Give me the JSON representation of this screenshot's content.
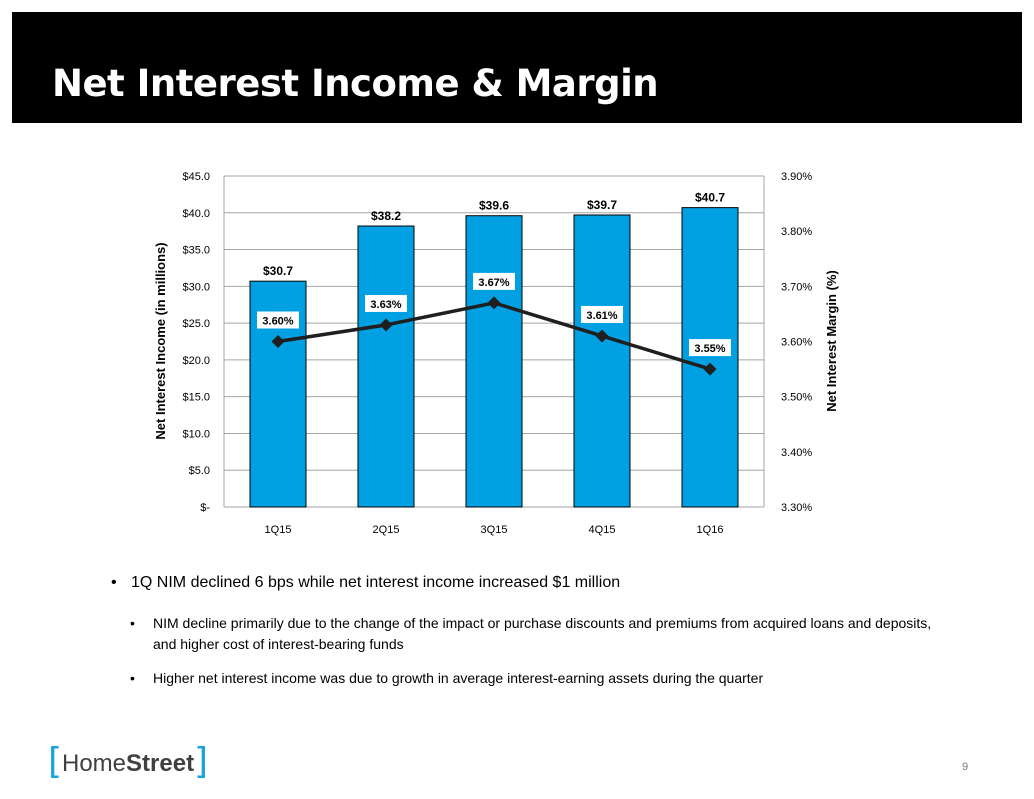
{
  "slide": {
    "title": "Net Interest Income & Margin",
    "page_number": "9"
  },
  "logo": {
    "bracket_left": "[",
    "name_part1": "Home",
    "name_part2": "Street",
    "bracket_right": "]",
    "bracket_color": "#1aa3dd"
  },
  "bullets": {
    "main": {
      "marker": "•",
      "text": "1Q NIM declined 6 bps while net interest income increased $1 million"
    },
    "sub": [
      {
        "marker": "•",
        "text": "NIM decline primarily due to the change of the impact or purchase discounts and premiums from acquired loans and deposits, and higher cost of interest-bearing funds"
      },
      {
        "marker": "•",
        "text": "Higher net interest income was due to growth in average interest-earning assets during the quarter"
      }
    ]
  },
  "chart_data": {
    "type": "bar",
    "categories": [
      "1Q15",
      "2Q15",
      "3Q15",
      "4Q15",
      "1Q16"
    ],
    "series": [
      {
        "type": "bar",
        "axis": "left",
        "values": [
          30.7,
          38.2,
          39.6,
          39.7,
          40.7
        ],
        "labels": [
          "$30.7",
          "$38.2",
          "$39.6",
          "$39.7",
          "$40.7"
        ],
        "color": "#00a0e3"
      },
      {
        "type": "line",
        "axis": "right",
        "values": [
          3.6,
          3.63,
          3.67,
          3.61,
          3.55
        ],
        "labels": [
          "3.60%",
          "3.63%",
          "3.67%",
          "3.61%",
          "3.55%"
        ],
        "color": "#1f1f1f",
        "marker": "diamond"
      }
    ],
    "ylabel": "Net Interest Income (in millions)",
    "y2label": "Net Interest Margin (%)",
    "ylim": [
      0,
      45
    ],
    "y2lim": [
      3.3,
      3.9
    ],
    "yticks": [
      0,
      5,
      10,
      15,
      20,
      25,
      30,
      35,
      40,
      45
    ],
    "ytick_labels": [
      "$-",
      "$5.0",
      "$10.0",
      "$15.0",
      "$20.0",
      "$25.0",
      "$30.0",
      "$35.0",
      "$40.0",
      "$45.0"
    ],
    "y2ticks": [
      3.3,
      3.4,
      3.5,
      3.6,
      3.7,
      3.8,
      3.9
    ],
    "y2tick_labels": [
      "3.30%",
      "3.40%",
      "3.50%",
      "3.60%",
      "3.70%",
      "3.80%",
      "3.90%"
    ],
    "grid": true,
    "legend": "none"
  }
}
